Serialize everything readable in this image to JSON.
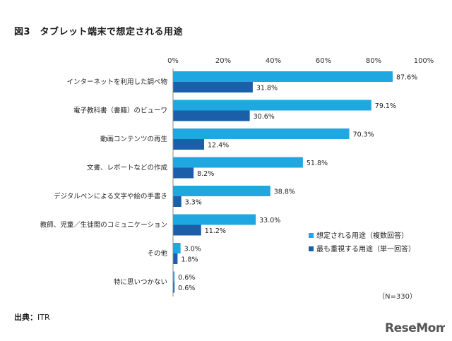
{
  "title": "図3　タブレット端末で想定される用途",
  "source_label": "出典：",
  "source_value": "ITR",
  "logo_text": "ReseMom",
  "chart_data": {
    "type": "bar",
    "orientation": "horizontal",
    "categories": [
      "インターネットを利用した調べ物",
      "電子教科書（書籍）のビューワ",
      "動画コンテンツの再生",
      "文書、レポートなどの作成",
      "デジタルペンによる文字や絵の手書き",
      "教師、児童／生徒間のコミュニケーション",
      "その他",
      "特に思いつかない"
    ],
    "series": [
      {
        "name": "想定される用途（複数回答）",
        "color": "#1ea7e1",
        "values": [
          87.6,
          79.1,
          70.3,
          51.8,
          38.8,
          33.0,
          3.0,
          0.6
        ]
      },
      {
        "name": "最も重視する用途（単一回答）",
        "color": "#1a5fa8",
        "values": [
          31.8,
          30.6,
          12.4,
          8.2,
          3.3,
          11.2,
          1.8,
          0.6
        ]
      }
    ],
    "value_format": "%",
    "xlim": [
      0,
      100
    ],
    "xticks": [
      "0%",
      "20%",
      "40%",
      "60%",
      "80%",
      "100%"
    ],
    "grid": false,
    "legend_position": "bottom-right",
    "note": "（N=330）"
  }
}
